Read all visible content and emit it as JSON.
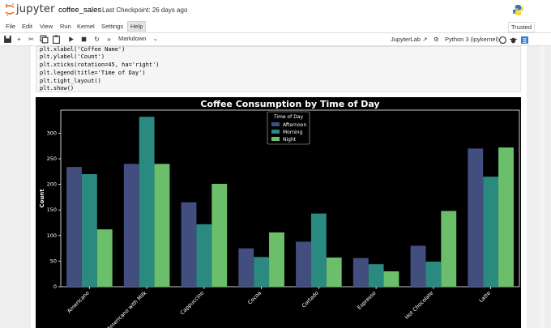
{
  "header": {
    "logo_text": "jupyter",
    "notebook_title": "coffee_sales",
    "checkpoint": "Last Checkpoint: 26 days ago"
  },
  "menu": {
    "items": [
      "File",
      "Edit",
      "View",
      "Run",
      "Kernel",
      "Settings",
      "Help"
    ],
    "trusted": "Trusted"
  },
  "toolbar": {
    "cell_type": "Markdown",
    "jupyterlab_link": "JupyterLab",
    "kernel_name": "Python 3 (ipykernel)"
  },
  "code": {
    "lines": [
      "plt.xlabel('Coffee Name')",
      "plt.ylabel('Count')",
      "plt.xticks(rotation=45, ha='right')",
      "plt.legend(title='Time of Day')",
      "plt.tight_layout()",
      "plt.show()"
    ]
  },
  "chart_data": {
    "type": "bar",
    "title": "Coffee Consumption by Time of Day",
    "xlabel": "",
    "ylabel": "Count",
    "ylim": [
      0,
      345
    ],
    "yticks": [
      0,
      50,
      100,
      150,
      200,
      250,
      300
    ],
    "categories": [
      "Americano",
      "Americano with Milk",
      "Cappuccino",
      "Cocoa",
      "Cortado",
      "Espresso",
      "Hot Chocolate",
      "Latte"
    ],
    "legend_title": "Time of Day",
    "legend_position": "top-center",
    "series": [
      {
        "name": "Afternoon",
        "color": "#414e7e",
        "values": [
          234,
          240,
          165,
          75,
          88,
          56,
          80,
          270
        ]
      },
      {
        "name": "Morning",
        "color": "#2a8a80",
        "values": [
          220,
          332,
          122,
          58,
          143,
          44,
          49,
          215
        ]
      },
      {
        "name": "Night",
        "color": "#6bbf6b",
        "values": [
          112,
          240,
          201,
          106,
          57,
          30,
          148,
          272
        ]
      }
    ]
  }
}
